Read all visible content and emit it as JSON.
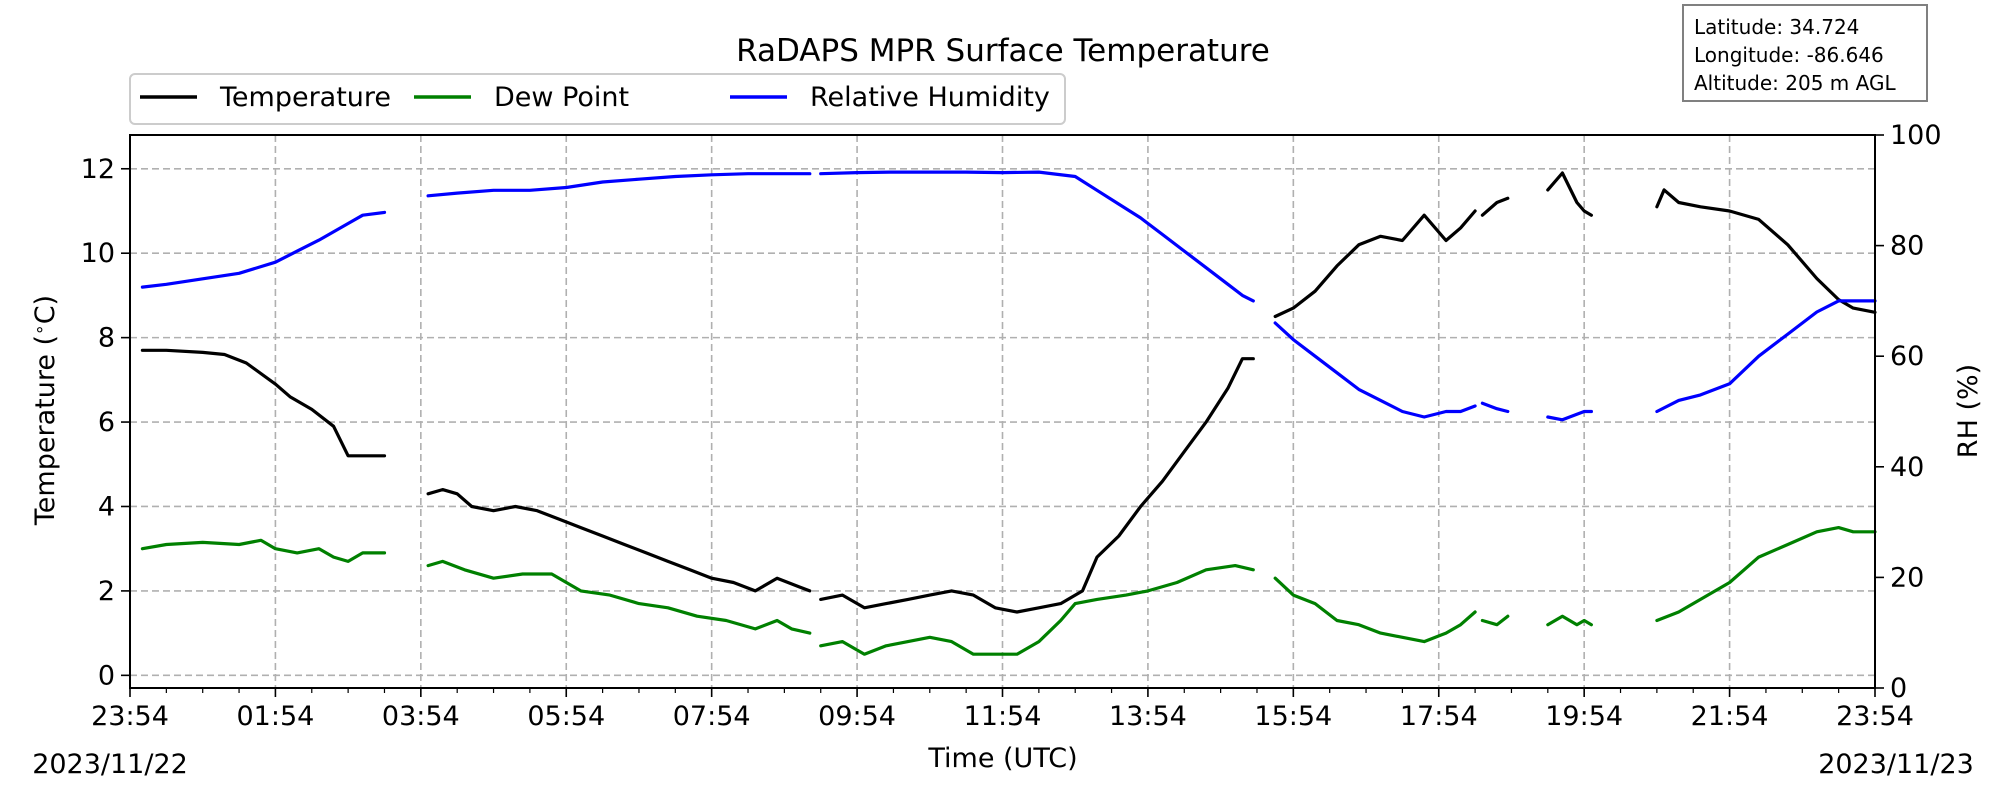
{
  "station": {
    "latitude": "Latitude: 34.724",
    "longitude": "Longitude: -86.646",
    "altitude": "Altitude: 205 m AGL"
  },
  "chart_data": {
    "type": "line",
    "title": "RaDAPS MPR Surface Temperature",
    "xlabel": "Time (UTC)",
    "ylabel": "Temperature ($^\\circ$C)",
    "ylabel_text": "Temperature (",
    "ylabel_unit": "C)",
    "y2label": "RH (%)",
    "start_date": "2023/11/22",
    "end_date": "2023/11/23",
    "x_ticks": [
      "23:54",
      "01:54",
      "03:54",
      "05:54",
      "07:54",
      "09:54",
      "11:54",
      "13:54",
      "15:54",
      "17:54",
      "19:54",
      "21:54",
      "23:54"
    ],
    "x_range_hours": [
      0,
      24
    ],
    "ylim": [
      -0.3,
      12.8
    ],
    "y_ticks": [
      0,
      2,
      4,
      6,
      8,
      10,
      12
    ],
    "y2lim": [
      0,
      100
    ],
    "y2_ticks": [
      0,
      20,
      40,
      60,
      80,
      100
    ],
    "grid": true,
    "legend_placement": "top-left, above plot",
    "series": [
      {
        "name": "Temperature",
        "axis": "left",
        "color": "#000000",
        "segments": [
          [
            [
              0.17,
              7.7
            ],
            [
              0.5,
              7.7
            ],
            [
              1.0,
              7.65
            ],
            [
              1.3,
              7.6
            ],
            [
              1.6,
              7.4
            ],
            [
              2.0,
              6.9
            ],
            [
              2.2,
              6.6
            ],
            [
              2.5,
              6.3
            ],
            [
              2.8,
              5.9
            ],
            [
              3.0,
              5.2
            ],
            [
              3.2,
              5.2
            ],
            [
              3.5,
              5.2
            ]
          ],
          [
            [
              4.1,
              4.3
            ],
            [
              4.3,
              4.4
            ],
            [
              4.5,
              4.3
            ],
            [
              4.7,
              4.0
            ],
            [
              5.0,
              3.9
            ],
            [
              5.3,
              4.0
            ],
            [
              5.6,
              3.9
            ],
            [
              5.9,
              3.7
            ],
            [
              6.2,
              3.5
            ],
            [
              6.5,
              3.3
            ],
            [
              6.8,
              3.1
            ],
            [
              7.1,
              2.9
            ],
            [
              7.4,
              2.7
            ],
            [
              7.7,
              2.5
            ],
            [
              8.0,
              2.3
            ],
            [
              8.3,
              2.2
            ],
            [
              8.6,
              2.0
            ],
            [
              8.9,
              2.3
            ],
            [
              9.2,
              2.1
            ],
            [
              9.35,
              2.0
            ]
          ],
          [
            [
              9.5,
              1.8
            ],
            [
              9.8,
              1.9
            ],
            [
              10.1,
              1.6
            ],
            [
              10.4,
              1.7
            ],
            [
              10.7,
              1.8
            ],
            [
              11.0,
              1.9
            ],
            [
              11.3,
              2.0
            ],
            [
              11.6,
              1.9
            ],
            [
              11.9,
              1.6
            ],
            [
              12.2,
              1.5
            ],
            [
              12.5,
              1.6
            ],
            [
              12.8,
              1.7
            ],
            [
              13.1,
              2.0
            ],
            [
              13.3,
              2.8
            ],
            [
              13.6,
              3.3
            ],
            [
              13.9,
              4.0
            ],
            [
              14.2,
              4.6
            ],
            [
              14.5,
              5.3
            ],
            [
              14.8,
              6.0
            ],
            [
              15.1,
              6.8
            ],
            [
              15.3,
              7.5
            ],
            [
              15.45,
              7.5
            ]
          ],
          [
            [
              15.75,
              8.5
            ],
            [
              16.0,
              8.7
            ],
            [
              16.3,
              9.1
            ],
            [
              16.6,
              9.7
            ],
            [
              16.9,
              10.2
            ],
            [
              17.2,
              10.4
            ],
            [
              17.5,
              10.3
            ],
            [
              17.8,
              10.9
            ],
            [
              18.1,
              10.3
            ],
            [
              18.3,
              10.6
            ],
            [
              18.5,
              11.0
            ]
          ],
          [
            [
              18.6,
              10.9
            ],
            [
              18.8,
              11.2
            ],
            [
              18.95,
              11.3
            ]
          ],
          [
            [
              19.5,
              11.5
            ],
            [
              19.7,
              11.9
            ],
            [
              19.9,
              11.2
            ],
            [
              20.0,
              11.0
            ],
            [
              20.1,
              10.9
            ]
          ],
          [
            [
              21.0,
              11.1
            ],
            [
              21.1,
              11.5
            ],
            [
              21.3,
              11.2
            ],
            [
              21.6,
              11.1
            ],
            [
              22.0,
              11.0
            ],
            [
              22.4,
              10.8
            ],
            [
              22.8,
              10.2
            ],
            [
              23.2,
              9.4
            ],
            [
              23.5,
              8.9
            ],
            [
              23.7,
              8.7
            ],
            [
              24.0,
              8.6
            ]
          ]
        ]
      },
      {
        "name": "Dew Point",
        "axis": "left",
        "color": "#008000",
        "segments": [
          [
            [
              0.17,
              3.0
            ],
            [
              0.5,
              3.1
            ],
            [
              1.0,
              3.15
            ],
            [
              1.5,
              3.1
            ],
            [
              1.8,
              3.2
            ],
            [
              2.0,
              3.0
            ],
            [
              2.3,
              2.9
            ],
            [
              2.6,
              3.0
            ],
            [
              2.8,
              2.8
            ],
            [
              3.0,
              2.7
            ],
            [
              3.2,
              2.9
            ],
            [
              3.5,
              2.9
            ]
          ],
          [
            [
              4.1,
              2.6
            ],
            [
              4.3,
              2.7
            ],
            [
              4.6,
              2.5
            ],
            [
              5.0,
              2.3
            ],
            [
              5.4,
              2.4
            ],
            [
              5.8,
              2.4
            ],
            [
              6.2,
              2.0
            ],
            [
              6.6,
              1.9
            ],
            [
              7.0,
              1.7
            ],
            [
              7.4,
              1.6
            ],
            [
              7.8,
              1.4
            ],
            [
              8.2,
              1.3
            ],
            [
              8.6,
              1.1
            ],
            [
              8.9,
              1.3
            ],
            [
              9.1,
              1.1
            ],
            [
              9.35,
              1.0
            ]
          ],
          [
            [
              9.5,
              0.7
            ],
            [
              9.8,
              0.8
            ],
            [
              10.1,
              0.5
            ],
            [
              10.4,
              0.7
            ],
            [
              10.7,
              0.8
            ],
            [
              11.0,
              0.9
            ],
            [
              11.3,
              0.8
            ],
            [
              11.6,
              0.5
            ],
            [
              11.9,
              0.5
            ],
            [
              12.2,
              0.5
            ],
            [
              12.5,
              0.8
            ],
            [
              12.8,
              1.3
            ],
            [
              13.0,
              1.7
            ],
            [
              13.3,
              1.8
            ],
            [
              13.7,
              1.9
            ],
            [
              14.0,
              2.0
            ],
            [
              14.4,
              2.2
            ],
            [
              14.8,
              2.5
            ],
            [
              15.2,
              2.6
            ],
            [
              15.45,
              2.5
            ]
          ],
          [
            [
              15.75,
              2.3
            ],
            [
              16.0,
              1.9
            ],
            [
              16.3,
              1.7
            ],
            [
              16.6,
              1.3
            ],
            [
              16.9,
              1.2
            ],
            [
              17.2,
              1.0
            ],
            [
              17.5,
              0.9
            ],
            [
              17.8,
              0.8
            ],
            [
              18.1,
              1.0
            ],
            [
              18.3,
              1.2
            ],
            [
              18.5,
              1.5
            ]
          ],
          [
            [
              18.6,
              1.3
            ],
            [
              18.8,
              1.2
            ],
            [
              18.95,
              1.4
            ]
          ],
          [
            [
              19.5,
              1.2
            ],
            [
              19.7,
              1.4
            ],
            [
              19.9,
              1.2
            ],
            [
              20.0,
              1.3
            ],
            [
              20.1,
              1.2
            ]
          ],
          [
            [
              21.0,
              1.3
            ],
            [
              21.3,
              1.5
            ],
            [
              21.6,
              1.8
            ],
            [
              22.0,
              2.2
            ],
            [
              22.4,
              2.8
            ],
            [
              22.8,
              3.1
            ],
            [
              23.2,
              3.4
            ],
            [
              23.5,
              3.5
            ],
            [
              23.7,
              3.4
            ],
            [
              24.0,
              3.4
            ]
          ]
        ]
      },
      {
        "name": "Relative Humidity",
        "axis": "right",
        "color": "#0000ff",
        "segments": [
          [
            [
              0.17,
              72.5
            ],
            [
              0.5,
              73
            ],
            [
              1.0,
              74
            ],
            [
              1.5,
              75
            ],
            [
              2.0,
              77
            ],
            [
              2.3,
              79
            ],
            [
              2.6,
              81
            ],
            [
              3.0,
              84
            ],
            [
              3.2,
              85.5
            ],
            [
              3.5,
              86
            ]
          ],
          [
            [
              4.1,
              89
            ],
            [
              4.5,
              89.5
            ],
            [
              5.0,
              90
            ],
            [
              5.5,
              90
            ],
            [
              6.0,
              90.5
            ],
            [
              6.5,
              91.5
            ],
            [
              7.0,
              92
            ],
            [
              7.5,
              92.5
            ],
            [
              8.0,
              92.8
            ],
            [
              8.5,
              93
            ],
            [
              9.0,
              93
            ],
            [
              9.35,
              93
            ]
          ],
          [
            [
              9.5,
              93
            ],
            [
              10.0,
              93.2
            ],
            [
              10.5,
              93.3
            ],
            [
              11.0,
              93.3
            ],
            [
              11.5,
              93.3
            ],
            [
              12.0,
              93.2
            ],
            [
              12.5,
              93.3
            ],
            [
              13.0,
              92.5
            ],
            [
              13.3,
              90
            ],
            [
              13.6,
              87.5
            ],
            [
              13.9,
              85
            ],
            [
              14.2,
              82
            ],
            [
              14.5,
              79
            ],
            [
              14.8,
              76
            ],
            [
              15.1,
              73
            ],
            [
              15.3,
              71
            ],
            [
              15.45,
              70
            ]
          ],
          [
            [
              15.75,
              66
            ],
            [
              16.0,
              63
            ],
            [
              16.3,
              60
            ],
            [
              16.6,
              57
            ],
            [
              16.9,
              54
            ],
            [
              17.2,
              52
            ],
            [
              17.5,
              50
            ],
            [
              17.8,
              49
            ],
            [
              18.1,
              50
            ],
            [
              18.3,
              50
            ],
            [
              18.5,
              51
            ]
          ],
          [
            [
              18.6,
              51.5
            ],
            [
              18.8,
              50.5
            ],
            [
              18.95,
              50
            ]
          ],
          [
            [
              19.5,
              49
            ],
            [
              19.7,
              48.5
            ],
            [
              19.9,
              49.5
            ],
            [
              20.0,
              50
            ],
            [
              20.1,
              50
            ]
          ],
          [
            [
              21.0,
              50
            ],
            [
              21.3,
              52
            ],
            [
              21.6,
              53
            ],
            [
              22.0,
              55
            ],
            [
              22.4,
              60
            ],
            [
              22.8,
              64
            ],
            [
              23.2,
              68
            ],
            [
              23.5,
              70
            ],
            [
              23.7,
              70
            ],
            [
              24.0,
              70
            ]
          ]
        ]
      }
    ]
  }
}
